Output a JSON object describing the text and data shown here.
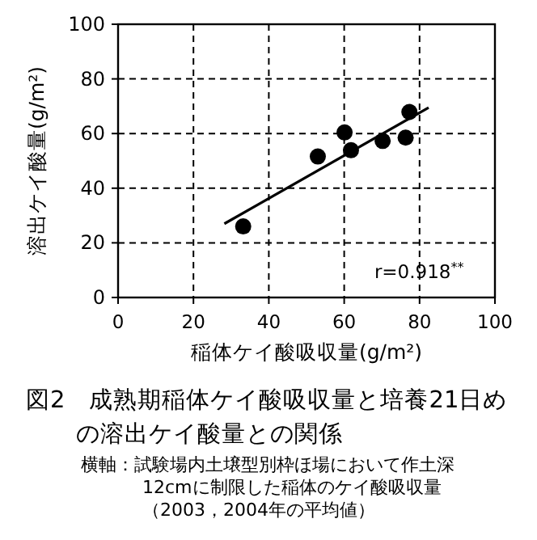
{
  "chart_data": {
    "type": "scatter",
    "title": "図2　成熟期稲体ケイ酸吸収量と培養21日めの溶出ケイ酸量との関係",
    "xlabel": "稲体ケイ酸吸収量(g/m²)",
    "ylabel": "溶出ケイ酸量(g/m²)",
    "annotations": [
      "r=0.918$^{**}$",
      "横軸：試験場内土壌型別枠ほ場において作土深12cmに制限した稲体のケイ酸吸収量（2003，2004年の平均値）"
    ],
    "xlim": [
      0,
      100
    ],
    "ylim": [
      0,
      100
    ],
    "xticks": [
      0,
      20,
      40,
      60,
      80,
      100
    ],
    "yticks": [
      0,
      20,
      40,
      60,
      80,
      100
    ],
    "grid": true,
    "marker": "circle",
    "series": [
      {
        "color": "#000000",
        "x": [
          33.2,
          53.0,
          60.1,
          61.8,
          70.2,
          76.3,
          77.3
        ],
        "values": [
          26,
          51.6,
          60.4,
          53.9,
          57.3,
          58.5,
          67.9
        ]
      },
      {
        "type": "line",
        "color": "#000000",
        "marker": "none",
        "x": [
          28.2,
          82.4
        ],
        "values": [
          27,
          69.5
        ]
      }
    ]
  }
}
